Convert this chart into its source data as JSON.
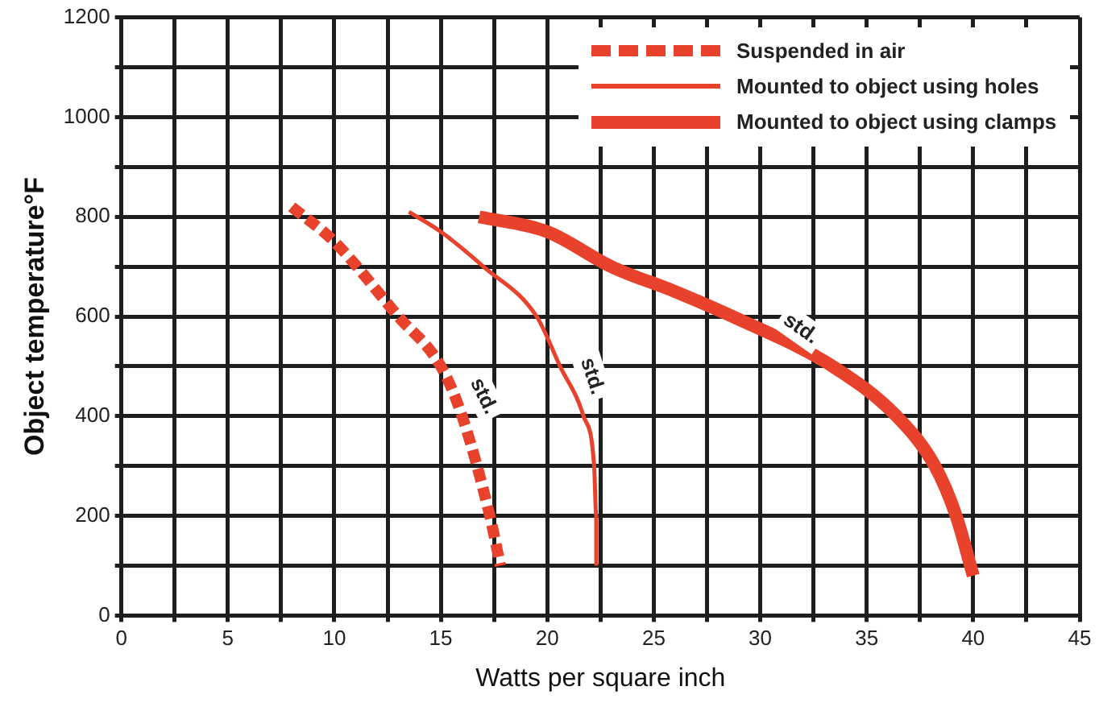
{
  "chart_data": {
    "type": "line",
    "xlabel": "Watts per square inch",
    "ylabel": "Object temperature°F",
    "xlim": [
      0,
      45
    ],
    "ylim": [
      0,
      1200
    ],
    "xticks": [
      0,
      {
        "value": 2.5,
        "label": null
      },
      5,
      {
        "value": 7.5,
        "label": null
      },
      10,
      {
        "value": 12.5,
        "label": null
      },
      15,
      {
        "value": 17.5,
        "label": null
      },
      20,
      {
        "value": 22.5,
        "label": null
      },
      25,
      {
        "value": 27.5,
        "label": null
      },
      30,
      {
        "value": 32.5,
        "label": null
      },
      35,
      {
        "value": 37.5,
        "label": null
      },
      40,
      {
        "value": 42.5,
        "label": null
      },
      45
    ],
    "yticks": [
      0,
      {
        "value": 100,
        "label": null
      },
      200,
      {
        "value": 300,
        "label": null
      },
      400,
      {
        "value": 500,
        "label": null
      },
      600,
      {
        "value": 700,
        "label": null
      },
      800,
      {
        "value": 900,
        "label": null
      },
      1000,
      {
        "value": 1100,
        "label": null
      },
      1200
    ],
    "grid": true,
    "legend": "top right",
    "marker": "none",
    "series": [
      {
        "name": "Suspended in air",
        "color": "#e8412c",
        "line_style": "dashed",
        "x": [
          8,
          10,
          13,
          15,
          16,
          17.3,
          17.8
        ],
        "values": [
          820,
          750,
          600,
          500,
          400,
          200,
          100
        ]
      },
      {
        "name": "Mounted to object using holes",
        "color": "#e8412c",
        "line_style": "solid",
        "x": [
          13.5,
          15,
          17,
          19.5,
          20.6,
          21.7,
          22.2,
          22.3,
          22.3
        ],
        "values": [
          810,
          770,
          700,
          600,
          500,
          400,
          300,
          200,
          100
        ]
      },
      {
        "name": "Mounted to object using clamps",
        "color": "#e8412c",
        "line_style": "solid",
        "x": [
          16.8,
          20,
          23,
          26,
          28.7,
          33.4,
          36.4,
          38.2,
          39.2,
          40
        ],
        "values": [
          800,
          770,
          700,
          650,
          600,
          500,
          400,
          300,
          200,
          80
        ]
      }
    ],
    "annotations": [
      {
        "text": "std.",
        "x": 17,
        "y": 440
      },
      {
        "text": "std.",
        "x": 22.1,
        "y": 480
      },
      {
        "text": "std.",
        "x": 31.9,
        "y": 575
      }
    ]
  }
}
